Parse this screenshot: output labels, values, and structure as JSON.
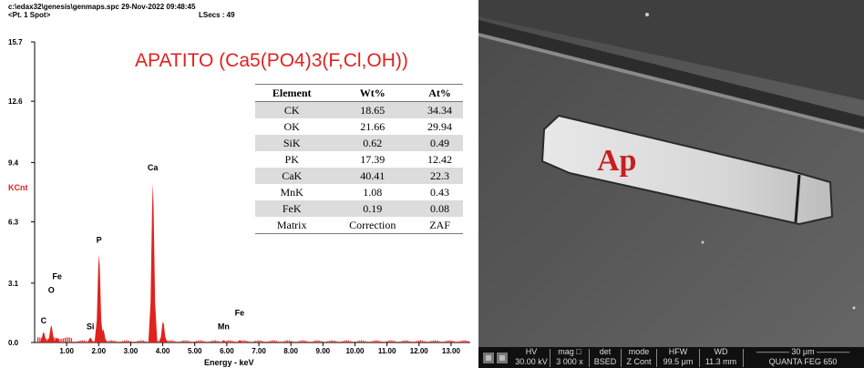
{
  "header": {
    "path": "c:\\edax32\\genesis\\genmaps.spc  29-Nov-2022 09:48:45",
    "spot": "<Pt. 1 Spot>",
    "lsecs": "LSecs : 49"
  },
  "chart_data": {
    "type": "bar",
    "title": "APATITO (Ca5(PO4)3(F,Cl,OH))",
    "xlabel": "Energy - keV",
    "ylabel": "KCnt",
    "xlim": [
      0,
      13.6
    ],
    "ylim": [
      0,
      15.7
    ],
    "yticks": [
      "15.7",
      "12.6",
      "9.4",
      "6.3",
      "3.1",
      "0.0"
    ],
    "ytick_values": [
      15.7,
      12.6,
      9.4,
      6.3,
      3.1,
      0.0
    ],
    "xticks": [
      "1.00",
      "2.00",
      "3.00",
      "4.00",
      "5.00",
      "6.00",
      "7.00",
      "8.00",
      "9.00",
      "10.00",
      "11.00",
      "12.00",
      "13.00"
    ],
    "xtick_values": [
      1,
      2,
      3,
      4,
      5,
      6,
      7,
      8,
      9,
      10,
      11,
      12,
      13
    ],
    "peaks": [
      {
        "x": 0.28,
        "y": 0.55
      },
      {
        "x": 0.52,
        "y": 0.9
      },
      {
        "x": 0.7,
        "y": 0.25
      },
      {
        "x": 1.74,
        "y": 0.25
      },
      {
        "x": 2.01,
        "y": 4.6
      },
      {
        "x": 2.14,
        "y": 0.7
      },
      {
        "x": 3.69,
        "y": 8.3
      },
      {
        "x": 4.01,
        "y": 1.1
      },
      {
        "x": 5.9,
        "y": 0.12
      },
      {
        "x": 6.4,
        "y": 0.12
      }
    ],
    "peak_labels": [
      {
        "text": "C",
        "x": 0.28,
        "y": 1.0
      },
      {
        "text": "O",
        "x": 0.52,
        "y": 2.6
      },
      {
        "text": "Fe",
        "x": 0.7,
        "y": 3.3
      },
      {
        "text": "Si",
        "x": 1.74,
        "y": 0.7
      },
      {
        "text": "P",
        "x": 2.01,
        "y": 5.2
      },
      {
        "text": "Ca",
        "x": 3.69,
        "y": 9.0
      },
      {
        "text": "Mn",
        "x": 5.9,
        "y": 0.7
      },
      {
        "text": "Fe",
        "x": 6.4,
        "y": 1.4
      }
    ],
    "color": "#e0221f"
  },
  "table": {
    "headers": [
      "Element",
      "Wt%",
      "At%"
    ],
    "rows": [
      [
        "CK",
        "18.65",
        "34.34"
      ],
      [
        "OK",
        "21.66",
        "29.94"
      ],
      [
        "SiK",
        "0.62",
        "0.49"
      ],
      [
        "PK",
        "17.39",
        "12.42"
      ],
      [
        "CaK",
        "40.41",
        "22.3"
      ],
      [
        "MnK",
        "1.08",
        "0.43"
      ],
      [
        "FeK",
        "0.19",
        "0.08"
      ],
      [
        "Matrix",
        "Correction",
        "ZAF"
      ]
    ]
  },
  "micrograph": {
    "label": "Ap",
    "label_color": "#c81e1e",
    "databar": {
      "headers": [
        "HV",
        "mag □",
        "det",
        "mode",
        "HFW",
        "WD",
        "———— 30 μm ————"
      ],
      "values": [
        "30.00 kV",
        "3 000 x",
        "BSED",
        "Z Cont",
        "99.5 μm",
        "11.3 mm",
        "QUANTA FEG 650"
      ]
    }
  }
}
